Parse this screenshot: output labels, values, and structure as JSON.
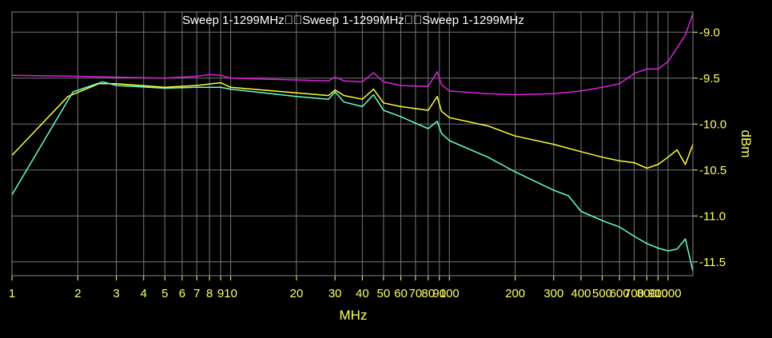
{
  "chart_data": {
    "type": "line",
    "title": "Sweep 1-1299MHz\u0000\u0000Sweep 1-1299MHz\u0000\u0000Sweep 1-1299MHz",
    "xlabel": "MHz",
    "ylabel": "dBm",
    "x_scale": "log",
    "xlim": [
      1,
      1299
    ],
    "ylim": [
      -11.65,
      -8.78
    ],
    "grid": true,
    "x_ticks": [
      1,
      2,
      3,
      4,
      5,
      6,
      7,
      8,
      9,
      10,
      20,
      30,
      40,
      50,
      60,
      70,
      80,
      90,
      100,
      200,
      300,
      400,
      500,
      600,
      700,
      800,
      900,
      1000
    ],
    "x_tick_labels": [
      "1",
      "2",
      "3",
      "4",
      "5",
      "6",
      "7",
      "8",
      "9",
      "10",
      "20",
      "30",
      "40",
      "50",
      "60",
      "70",
      "80",
      "90",
      "100",
      "200",
      "300",
      "400",
      "500",
      "600",
      "700",
      "800",
      "900",
      "1000"
    ],
    "y_ticks": [
      -9.0,
      -9.5,
      -10.0,
      -10.5,
      -11.0,
      -11.5
    ],
    "y_tick_labels": [
      "-9.0",
      "-9.5",
      "-10.0",
      "-10.5",
      "-11.0",
      "-11.5"
    ],
    "series": [
      {
        "color": "#dd22dd",
        "x": [
          1,
          2,
          3,
          5,
          7,
          8,
          9,
          10,
          20,
          28,
          30,
          33,
          40,
          45,
          50,
          60,
          80,
          88,
          92,
          100,
          150,
          200,
          300,
          400,
          500,
          600,
          700,
          800,
          900,
          1000,
          1100,
          1200,
          1299
        ],
        "y": [
          -9.47,
          -9.48,
          -9.49,
          -9.5,
          -9.48,
          -9.46,
          -9.47,
          -9.5,
          -9.52,
          -9.53,
          -9.49,
          -9.53,
          -9.54,
          -9.44,
          -9.54,
          -9.58,
          -9.59,
          -9.43,
          -9.57,
          -9.64,
          -9.67,
          -9.68,
          -9.67,
          -9.64,
          -9.6,
          -9.56,
          -9.45,
          -9.4,
          -9.4,
          -9.32,
          -9.17,
          -9.03,
          -8.8
        ]
      },
      {
        "color": "#ffff33",
        "x": [
          1,
          1.8,
          2.5,
          3,
          5,
          7,
          9,
          10,
          20,
          28,
          30,
          33,
          40,
          45,
          50,
          60,
          80,
          88,
          92,
          100,
          150,
          200,
          300,
          400,
          500,
          600,
          700,
          800,
          900,
          1000,
          1100,
          1200,
          1299
        ],
        "y": [
          -10.34,
          -9.7,
          -9.56,
          -9.56,
          -9.6,
          -9.58,
          -9.55,
          -9.6,
          -9.66,
          -9.69,
          -9.63,
          -9.69,
          -9.73,
          -9.62,
          -9.77,
          -9.81,
          -9.85,
          -9.7,
          -9.86,
          -9.93,
          -10.02,
          -10.13,
          -10.22,
          -10.3,
          -10.36,
          -10.4,
          -10.42,
          -10.48,
          -10.44,
          -10.36,
          -10.28,
          -10.44,
          -10.22
        ]
      },
      {
        "color": "#66ffcc",
        "x": [
          1,
          1.9,
          2.6,
          3,
          5,
          7,
          9,
          10,
          20,
          28,
          30,
          33,
          40,
          45,
          50,
          60,
          80,
          88,
          92,
          100,
          150,
          200,
          300,
          350,
          400,
          500,
          600,
          700,
          800,
          900,
          1000,
          1100,
          1200,
          1299
        ],
        "y": [
          -10.77,
          -9.65,
          -9.54,
          -9.58,
          -9.61,
          -9.6,
          -9.6,
          -9.62,
          -9.7,
          -9.73,
          -9.65,
          -9.76,
          -9.81,
          -9.68,
          -9.85,
          -9.92,
          -10.05,
          -9.97,
          -10.1,
          -10.18,
          -10.36,
          -10.52,
          -10.72,
          -10.78,
          -10.95,
          -11.05,
          -11.12,
          -11.22,
          -11.3,
          -11.35,
          -11.38,
          -11.36,
          -11.25,
          -11.6
        ]
      }
    ]
  }
}
